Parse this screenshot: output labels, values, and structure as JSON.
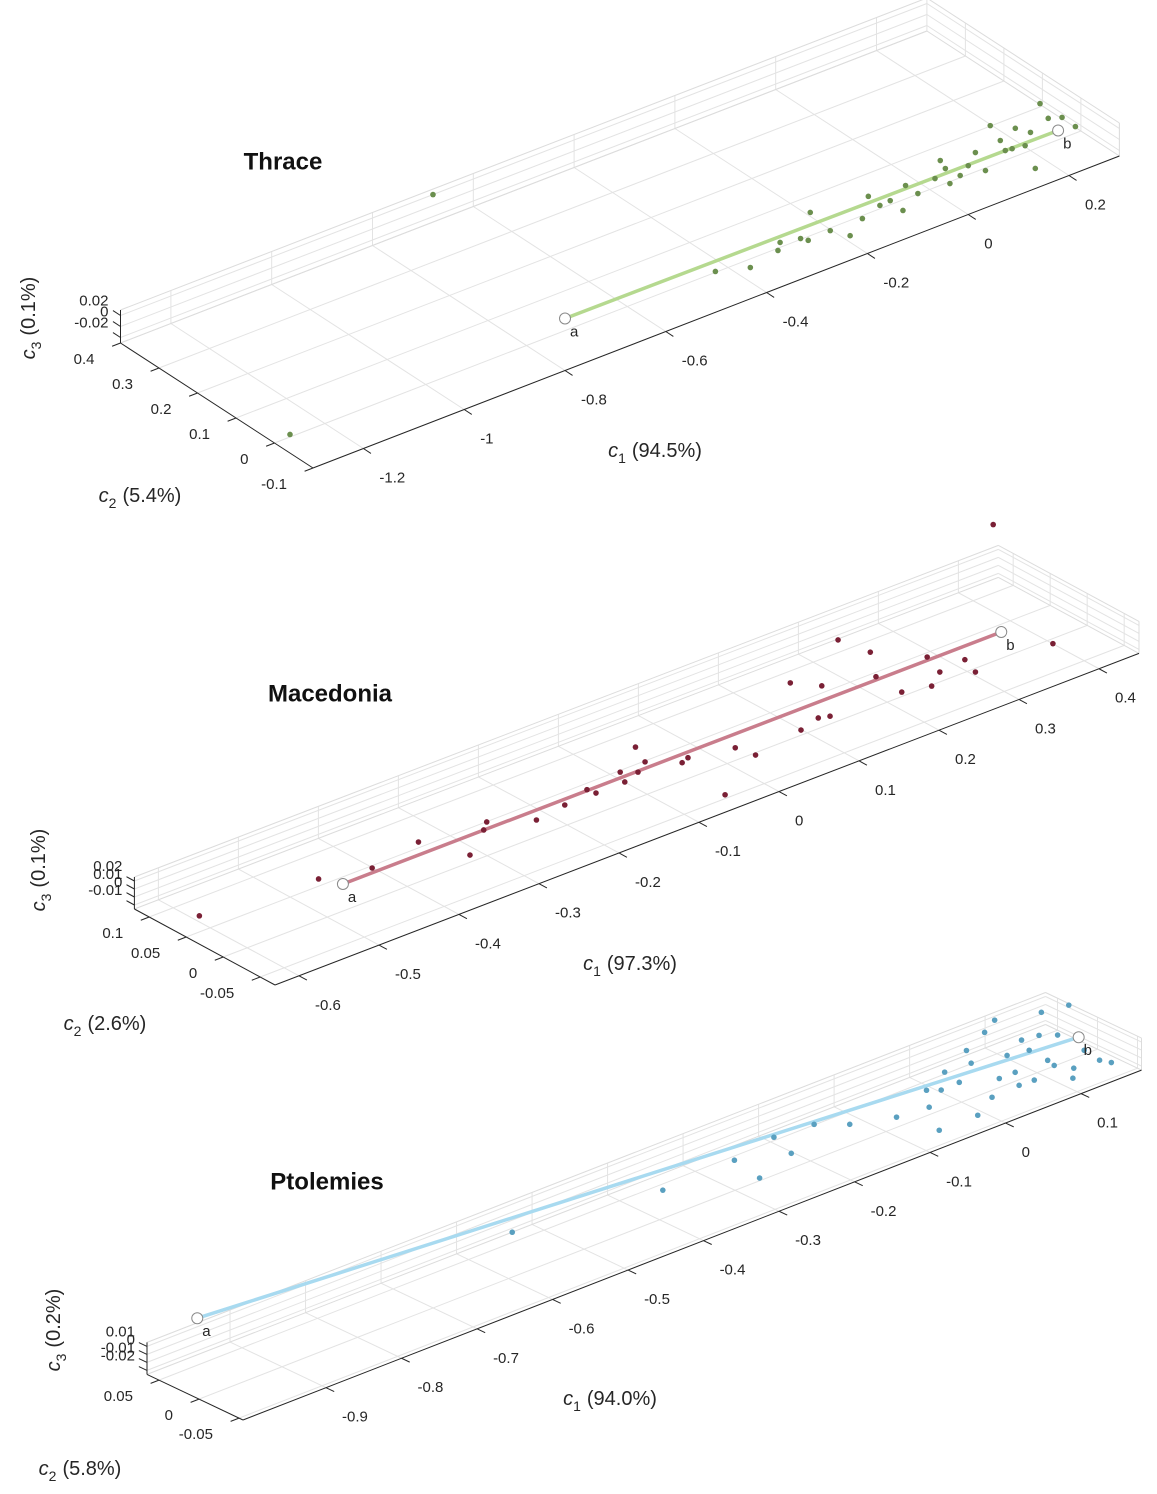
{
  "chart_data": [
    {
      "type": "scatter3d",
      "title": "Thrace",
      "xlabel": {
        "symbol": "c",
        "subscript": "1",
        "text": "(94.5%)"
      },
      "ylabel": {
        "symbol": "c",
        "subscript": "2",
        "text": "(5.4%)"
      },
      "zlabel": {
        "symbol": "c",
        "subscript": "3",
        "text": "(0.1%)"
      },
      "xlim": [
        -1.3,
        0.3
      ],
      "ylim": [
        -0.1,
        0.4
      ],
      "zlim": [
        -0.03,
        0.03
      ],
      "xticks": [
        -1.2,
        -1,
        -0.8,
        -0.6,
        -0.4,
        -0.2,
        0,
        0.2
      ],
      "yticks": [
        -0.1,
        0,
        0.1,
        0.2,
        0.3,
        0.4
      ],
      "zticks": [
        -0.02,
        0,
        0.02
      ],
      "grid": true,
      "points": {
        "color": "#6b8f4e",
        "x": [
          -0.68,
          -1.296,
          -0.455,
          -0.404,
          -0.337,
          -0.319,
          -0.286,
          -0.28,
          -0.224,
          -0.234,
          -0.219,
          -0.171,
          -0.121,
          -0.102,
          -0.105,
          -0.054,
          -0.054,
          -0.004,
          0.037,
          0.005,
          0.033,
          0.062,
          0.096,
          0.074,
          0.166,
          0.15,
          0.149,
          0.192,
          0.171,
          0.14,
          0.27,
          0.252,
          0.271,
          0.27,
          0.203,
          0.028,
          -0.124,
          0.137
        ],
        "y": [
          0.4,
          -0.035,
          -0.039,
          -0.063,
          -0.047,
          -0.029,
          -0.039,
          -0.051,
          0.017,
          -0.048,
          -0.08,
          -0.049,
          0.001,
          -0.031,
          -0.068,
          -0.008,
          -0.04,
          -0.019,
          0.021,
          -0.046,
          -0.036,
          -0.019,
          0.007,
          -0.048,
          0.06,
          0.013,
          -0.019,
          0.029,
          -0.024,
          -0.091,
          0.067,
          0.022,
          0.011,
          -0.025,
          0.004,
          -0.004,
          -0.033,
          -0.017
        ],
        "z": [
          0.02,
          0,
          0,
          0,
          0,
          0,
          0,
          0,
          0,
          0,
          0,
          0,
          0,
          0,
          0,
          0,
          0,
          0,
          0,
          0,
          0,
          0,
          0,
          0,
          0,
          0,
          0,
          0,
          0,
          0,
          0,
          0,
          0,
          0,
          0,
          0,
          0,
          0
        ]
      },
      "line": {
        "color": "#b5d98f",
        "x": [
          -0.732,
          0.241
        ],
        "y": [
          -0.011,
          -0.018
        ],
        "z": [
          0,
          0
        ],
        "labels": [
          "a",
          "b"
        ]
      }
    },
    {
      "type": "scatter3d",
      "title": "Macedonia",
      "xlabel": {
        "symbol": "c",
        "subscript": "1",
        "text": "(97.3%)"
      },
      "ylabel": {
        "symbol": "c",
        "subscript": "2",
        "text": "(2.6%)"
      },
      "zlabel": {
        "symbol": "c",
        "subscript": "3",
        "text": "(0.1%)"
      },
      "xlim": [
        -0.63,
        0.45
      ],
      "ylim": [
        -0.07,
        0.12
      ],
      "zlim": [
        -0.015,
        0.025
      ],
      "xticks": [
        -0.6,
        -0.5,
        -0.4,
        -0.3,
        -0.2,
        -0.1,
        0,
        0.1,
        0.2,
        0.3,
        0.4
      ],
      "yticks": [
        -0.05,
        0,
        0.05,
        0.1
      ],
      "zticks": [
        -0.01,
        0,
        0.01,
        0.02
      ],
      "grid": true,
      "points": {
        "color": "#7a2035",
        "x": [
          0.351,
          0.384,
          0.232,
          0.239,
          0.139,
          0.158,
          0.21,
          0.208,
          0.274,
          0.298,
          0.289,
          0.238,
          0.263,
          0.112,
          0.123,
          0.083,
          0.016,
          -0.06,
          0.011,
          -0.048,
          -0.037,
          -0.061,
          -0.074,
          -0.106,
          -0.116,
          -0.093,
          -0.154,
          -0.152,
          -0.191,
          -0.232,
          -0.271,
          -0.284,
          -0.348,
          -0.328,
          -0.417,
          -0.471,
          -0.608
        ],
        "y": [
          0.02,
          -0.025,
          0.101,
          0.065,
          0.065,
          0.043,
          0.026,
          -0.011,
          0.026,
          0.001,
          -0.023,
          -0.019,
          -0.003,
          -0.002,
          -0.006,
          -0.01,
          -0.021,
          -0.062,
          0.001,
          0.009,
          0.013,
          0.058,
          0.031,
          0.03,
          0.013,
          0.02,
          0.023,
          0.013,
          0.013,
          0.007,
          0.032,
          0.022,
          0.041,
          -0.007,
          0.029,
          0.043,
          0.056
        ],
        "z": [
          0.139,
          0,
          0,
          0,
          0,
          0,
          0,
          0,
          0,
          0,
          0,
          0,
          0,
          0,
          0,
          0,
          0,
          0,
          0,
          0,
          0,
          0,
          0,
          0,
          0,
          0,
          0,
          0,
          0,
          0,
          0,
          0,
          0,
          0,
          0,
          0,
          0
        ]
      },
      "line": {
        "color": "#c97d8c",
        "x": [
          -0.46,
          0.362
        ],
        "y": [
          0.022,
          0.021
        ],
        "z": [
          0,
          0
        ],
        "labels": [
          "a",
          "b"
        ]
      }
    },
    {
      "type": "scatter3d",
      "title": "Ptolemies",
      "xlabel": {
        "symbol": "c",
        "subscript": "1",
        "text": "(94.0%)"
      },
      "ylabel": {
        "symbol": "c",
        "subscript": "2",
        "text": "(5.8%)"
      },
      "zlabel": {
        "symbol": "c",
        "subscript": "3",
        "text": "(0.2%)"
      },
      "xlim": [
        -1.01,
        0.18
      ],
      "ylim": [
        -0.055,
        0.065
      ],
      "zlim": [
        -0.025,
        0.015
      ],
      "xticks": [
        -0.9,
        -0.8,
        -0.7,
        -0.6,
        -0.5,
        -0.4,
        -0.3,
        -0.2,
        -0.1,
        0,
        0.1
      ],
      "yticks": [
        -0.05,
        0,
        0.05
      ],
      "zticks": [
        -0.02,
        -0.01,
        0,
        0.01
      ],
      "grid": true,
      "points": {
        "color": "#5aa0c0",
        "x": [
          -0.557,
          -0.383,
          -0.285,
          -0.294,
          -0.221,
          -0.233,
          -0.172,
          -0.146,
          -0.101,
          -0.038,
          -0.062,
          -0.09,
          -0.027,
          0.003,
          -0.002,
          0.052,
          0.036,
          -0.039,
          0.093,
          -0.001,
          0.119,
          0.033,
          0.074,
          0.054,
          0.037,
          0.108,
          0.098,
          0.056,
          0.128,
          0.165,
          0.096,
          0.093,
          0.196,
          0.087,
          0.103,
          0.138,
          0.134,
          0.139,
          0.142
        ],
        "y": [
          0.036,
          0.012,
          0.015,
          -0.025,
          0.026,
          -0.007,
          0.022,
          0.002,
          -0.014,
          0.008,
          -0.018,
          -0.057,
          0,
          0.024,
          0.001,
          0.043,
          0.022,
          -0.057,
          0.059,
          -0.039,
          0.071,
          -0.016,
          0.013,
          -0.016,
          -0.037,
          0.027,
          0.008,
          -0.038,
          0.024,
          0.056,
          -0.017,
          -0.028,
          0.051,
          -0.057,
          -0.043,
          -0.023,
          -0.046,
          -0.056,
          0.014
        ],
        "z": [
          0,
          0,
          0,
          0,
          0,
          0,
          0,
          0,
          0,
          0,
          0,
          0,
          0,
          0,
          0,
          0,
          0,
          0,
          0,
          0,
          0,
          0,
          0,
          0,
          0,
          0,
          0,
          0,
          0,
          0,
          0,
          0,
          0,
          0,
          0,
          0,
          0,
          0,
          0
        ]
      },
      "line": {
        "color": "#a8daf0",
        "x": [
          -0.918,
          0.154
        ],
        "y": [
          0.089,
          -0.001
        ],
        "z": [
          0,
          0
        ],
        "labels": [
          "a",
          "b"
        ]
      }
    }
  ]
}
